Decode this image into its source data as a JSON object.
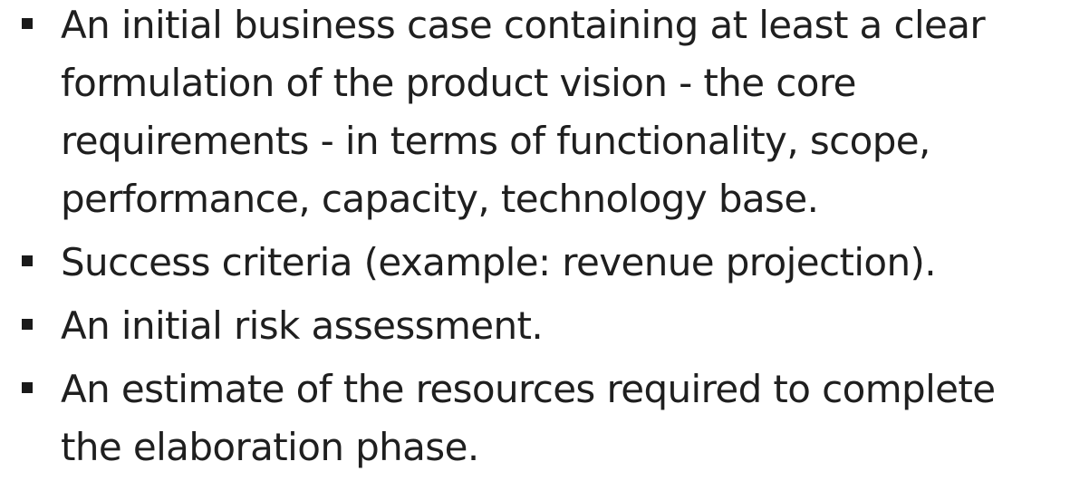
{
  "bullets": [
    {
      "text": "An initial business case containing at least a clear formulation of the product vision - the core requirements - in terms of functionality, scope, performance, capacity, technology base."
    },
    {
      "text": "Success criteria (example: revenue projection)."
    },
    {
      "text": "An initial risk assessment."
    },
    {
      "text": "An estimate of the resources required to complete the elaboration phase."
    }
  ]
}
